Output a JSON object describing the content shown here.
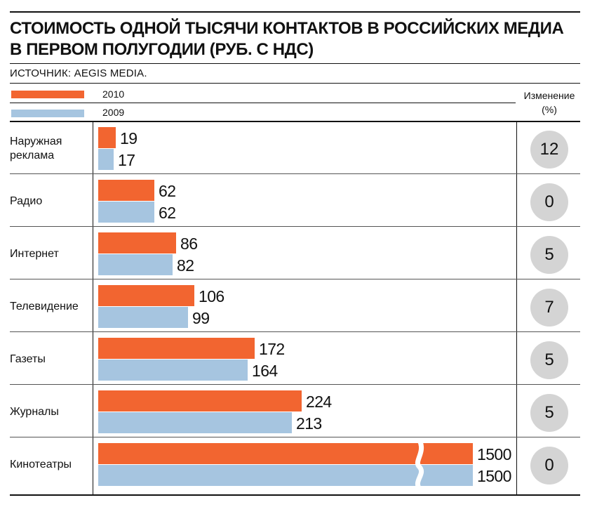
{
  "title_line1": "СТОИМОСТЬ ОДНОЙ ТЫСЯЧИ КОНТАКТОВ В РОССИЙСКИХ МЕДИА",
  "title_line2": "В ПЕРВОМ ПОЛУГОДИИ (РУБ. С НДС)",
  "source": "ИСТОЧНИК: AEGIS MEDIA.",
  "change_header_line1": "Изменение",
  "change_header_line2": "(%)",
  "colors": {
    "s2010": "#f26530",
    "s2009": "#a6c5e0",
    "circle": "#d4d4d4"
  },
  "chart_data": {
    "type": "bar",
    "orientation": "horizontal",
    "title": "СТОИМОСТЬ ОДНОЙ ТЫСЯЧИ КОНТАКТОВ В РОССИЙСКИХ МЕДИА В ПЕРВОМ ПОЛУГОДИИ (РУБ. С НДС)",
    "categories": [
      "Наружная реклама",
      "Радио",
      "Интернет",
      "Телевидение",
      "Газеты",
      "Журналы",
      "Кинотеатры"
    ],
    "series": [
      {
        "name": "2010",
        "values": [
          19,
          62,
          86,
          106,
          172,
          224,
          1500
        ]
      },
      {
        "name": "2009",
        "values": [
          17,
          62,
          82,
          99,
          164,
          213,
          1500
        ]
      }
    ],
    "change_percent": [
      12,
      0,
      5,
      7,
      5,
      5,
      0
    ],
    "broken_bar_category": "Кинотеатры",
    "legend_position": "top-left",
    "grid": false
  }
}
